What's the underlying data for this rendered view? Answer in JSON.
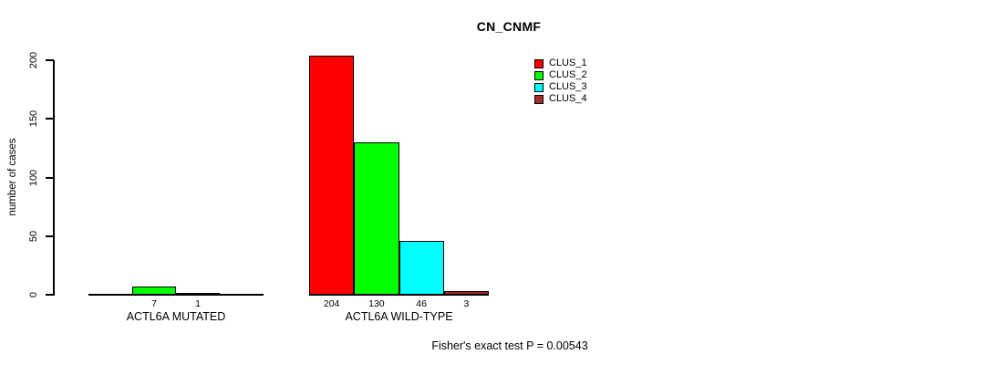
{
  "chart_data": {
    "type": "bar",
    "title": "CN_CNMF",
    "ylabel": "number of cases",
    "xlabel": "",
    "ylim": [
      0,
      210
    ],
    "yticks": [
      0,
      50,
      100,
      150,
      200
    ],
    "grid": false,
    "categories": [
      "ACTL6A MUTATED",
      "ACTL6A WILD-TYPE"
    ],
    "series": [
      {
        "name": "CLUS_1",
        "values": [
          0,
          204
        ]
      },
      {
        "name": "CLUS_2",
        "values": [
          7,
          130
        ]
      },
      {
        "name": "CLUS_3",
        "values": [
          1,
          46
        ]
      },
      {
        "name": "CLUS_4",
        "values": [
          0,
          3
        ]
      }
    ],
    "series_colors": [
      "#ff0000",
      "#00ff00",
      "#00ffff",
      "#a52a2a"
    ],
    "legend_position": "top-right",
    "legend_entries": [
      "CLUS_1",
      "CLUS_2",
      "CLUS_3",
      "CLUS_4"
    ],
    "bar_value_labels_note": "counts printed under non-zero bars only",
    "visible_bar_value_labels": [
      "7",
      "1",
      "204",
      "130",
      "46",
      "3"
    ],
    "annotation": "Fisher's exact test P = 0.00543"
  }
}
